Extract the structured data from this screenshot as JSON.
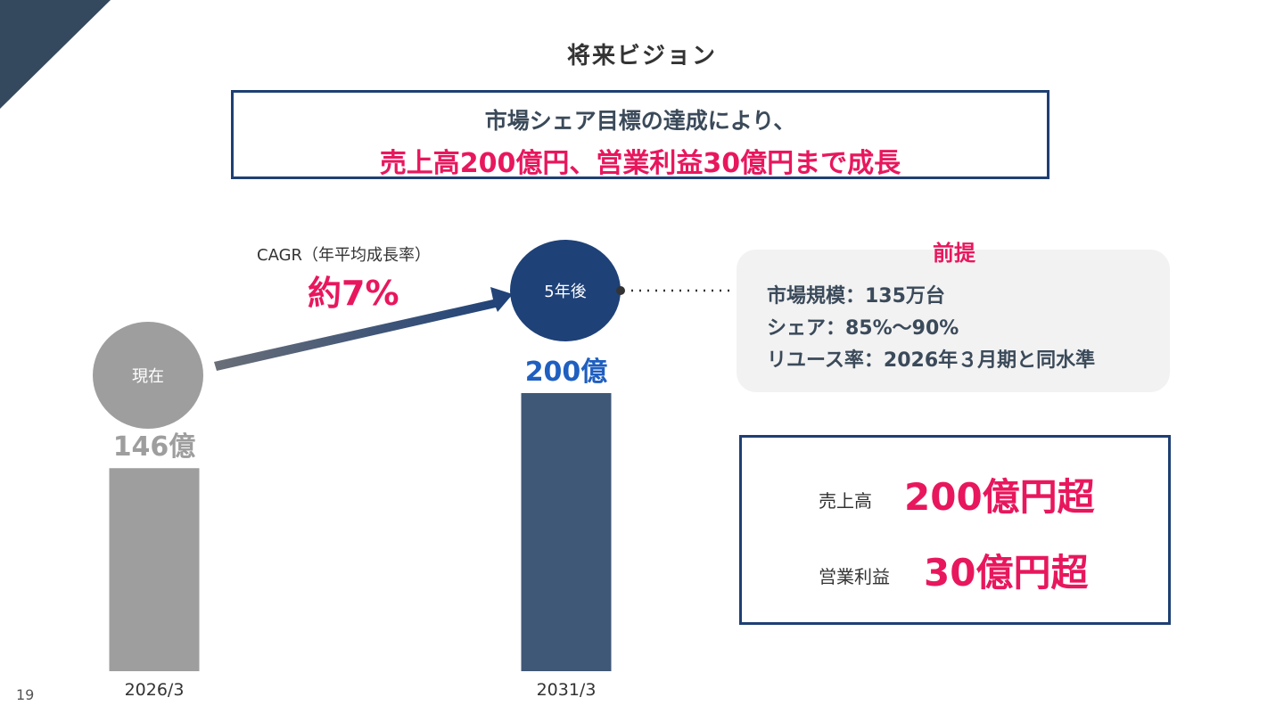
{
  "colors": {
    "accent": "#e8175d",
    "navy": "#1e4178",
    "bar_future": "#3f5878",
    "bar_now": "#9e9e9e",
    "corner": "#34495e",
    "premise_bg": "#f2f2f2"
  },
  "slide": {
    "title": "将来ビジョン",
    "page_number": "19"
  },
  "headline": {
    "line1": "市場シェア目標の達成により、",
    "line2": "売上高200億円、営業利益30億円まで成長"
  },
  "growth": {
    "cagr_label": "CAGR（年平均成長率）",
    "cagr_value": "約7%",
    "now_label": "現在",
    "future_label": "5年後"
  },
  "premise": {
    "title": "前提",
    "items": [
      "市場規模：135万台",
      "シェア：85%〜90%",
      "リユース率：2026年３月期と同水準"
    ]
  },
  "targets": {
    "sales_label": "売上高",
    "sales_value": "200億円超",
    "profit_label": "営業利益",
    "profit_value": "30億円超"
  },
  "chart_data": {
    "type": "bar",
    "categories": [
      "2026/3",
      "2031/3"
    ],
    "values": [
      146,
      200
    ],
    "value_labels": [
      "146億",
      "200億"
    ],
    "ylim": [
      0,
      200
    ],
    "grid": false
  }
}
